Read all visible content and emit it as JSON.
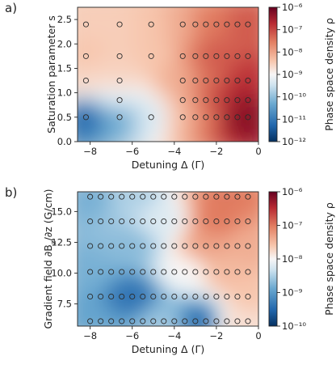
{
  "chart_data": [
    {
      "panel": "a)",
      "type": "heatmap",
      "xlabel": "Detuning Δ (Γ)",
      "ylabel": "Saturation parameter s",
      "xlim": [
        -8.6,
        0
      ],
      "ylim": [
        0,
        2.75
      ],
      "xticks": [
        -8,
        -6,
        -4,
        -2,
        0
      ],
      "yticks": [
        0.0,
        0.5,
        1.0,
        1.5,
        2.0,
        2.5
      ],
      "colorbar": {
        "label": "Phase space density ρ",
        "scale": "log",
        "range": [
          1e-12,
          1e-06
        ],
        "ticks": [
          "10⁻⁶",
          "10⁻⁷",
          "10⁻⁸",
          "10⁻⁹",
          "10⁻¹⁰",
          "10⁻¹¹",
          "10⁻¹²"
        ]
      },
      "colormap": {
        "low": "#2a66ac",
        "mid": "#f7f6f6",
        "high": "#67001f"
      },
      "measurement_points": [
        {
          "detuning": -8.2,
          "s": [
            0.5,
            1.25,
            1.75,
            2.4
          ]
        },
        {
          "detuning": -6.6,
          "s": [
            0.5,
            0.85,
            1.25,
            1.75,
            2.4
          ]
        },
        {
          "detuning": -5.1,
          "s": [
            0.5,
            1.75,
            2.4
          ]
        },
        {
          "detuning": -3.6,
          "s": [
            0.5,
            0.85,
            1.25,
            1.75,
            2.4
          ]
        },
        {
          "detuning": -3.0,
          "s": [
            0.5,
            0.85,
            1.25,
            1.75,
            2.4
          ]
        },
        {
          "detuning": -2.5,
          "s": [
            0.5,
            0.85,
            1.25,
            1.75,
            2.4
          ]
        },
        {
          "detuning": -2.0,
          "s": [
            0.5,
            0.85,
            1.25,
            1.75,
            2.4
          ]
        },
        {
          "detuning": -1.5,
          "s": [
            0.5,
            0.85,
            1.25,
            1.75,
            2.4
          ]
        },
        {
          "detuning": -1.0,
          "s": [
            0.5,
            0.85,
            1.25,
            1.75,
            2.4
          ]
        },
        {
          "detuning": -0.5,
          "s": [
            0.5,
            0.85,
            1.25,
            1.75,
            2.4
          ]
        }
      ],
      "density_field": [
        {
          "detuning": -8.2,
          "s": 0.5,
          "log10_rho": -11.2
        },
        {
          "detuning": -8.2,
          "s": 1.25,
          "log10_rho": -8.6
        },
        {
          "detuning": -8.2,
          "s": 1.75,
          "log10_rho": -8.4
        },
        {
          "detuning": -8.2,
          "s": 2.4,
          "log10_rho": -8.5
        },
        {
          "detuning": -6.6,
          "s": 0.5,
          "log10_rho": -10.3
        },
        {
          "detuning": -6.6,
          "s": 0.85,
          "log10_rho": -9.3
        },
        {
          "detuning": -6.6,
          "s": 1.25,
          "log10_rho": -8.6
        },
        {
          "detuning": -6.6,
          "s": 1.75,
          "log10_rho": -8.5
        },
        {
          "detuning": -6.6,
          "s": 2.4,
          "log10_rho": -8.5
        },
        {
          "detuning": -5.1,
          "s": 0.5,
          "log10_rho": -9.4
        },
        {
          "detuning": -5.1,
          "s": 1.75,
          "log10_rho": -8.4
        },
        {
          "detuning": -5.1,
          "s": 2.4,
          "log10_rho": -8.4
        },
        {
          "detuning": -3.6,
          "s": 0.5,
          "log10_rho": -8.3
        },
        {
          "detuning": -3.6,
          "s": 1.25,
          "log10_rho": -8.1
        },
        {
          "detuning": -3.6,
          "s": 2.4,
          "log10_rho": -8.1
        },
        {
          "detuning": -2.5,
          "s": 0.5,
          "log10_rho": -7.5
        },
        {
          "detuning": -2.5,
          "s": 1.25,
          "log10_rho": -7.4
        },
        {
          "detuning": -2.5,
          "s": 2.4,
          "log10_rho": -7.5
        },
        {
          "detuning": -2.0,
          "s": 1.75,
          "log10_rho": -7.2
        },
        {
          "detuning": -1.5,
          "s": 0.85,
          "log10_rho": -6.9
        },
        {
          "detuning": -1.0,
          "s": 0.5,
          "log10_rho": -6.3
        },
        {
          "detuning": -1.0,
          "s": 0.85,
          "log10_rho": -6.4
        },
        {
          "detuning": -0.5,
          "s": 0.5,
          "log10_rho": -6.3
        },
        {
          "detuning": -0.5,
          "s": 1.25,
          "log10_rho": -6.8
        },
        {
          "detuning": -0.5,
          "s": 2.4,
          "log10_rho": -7.2
        }
      ]
    },
    {
      "panel": "b)",
      "type": "heatmap",
      "xlabel": "Detuning Δ (Γ)",
      "ylabel": "Gradient field ∂B_z/∂z (G/cm)",
      "xlim": [
        -8.6,
        0
      ],
      "ylim": [
        5.7,
        16.6
      ],
      "xticks": [
        -8,
        -6,
        -4,
        -2,
        0
      ],
      "yticks": [
        7.5,
        10.0,
        12.5,
        15.0
      ],
      "colorbar": {
        "label": "Phase space density ρ",
        "scale": "log",
        "range": [
          1e-10,
          1e-06
        ],
        "ticks": [
          "10⁻⁶",
          "10⁻⁷",
          "10⁻⁸",
          "10⁻⁹",
          "10⁻¹⁰"
        ]
      },
      "colormap": {
        "low": "#2a66ac",
        "mid": "#f7f6f6",
        "high": "#67001f"
      },
      "measurement_points": {
        "gradients": [
          6.1,
          8.1,
          10.1,
          12.2,
          14.2,
          16.2
        ],
        "detuning_from": -8.0,
        "detuning_to": -0.5,
        "detuning_step": 0.5
      },
      "density_field": [
        {
          "detuning": -8.0,
          "gradient": 6.1,
          "log10_rho": -8.9
        },
        {
          "detuning": -8.0,
          "gradient": 10.1,
          "log10_rho": -8.8
        },
        {
          "detuning": -8.0,
          "gradient": 16.2,
          "log10_rho": -8.8
        },
        {
          "detuning": -6.0,
          "gradient": 8.1,
          "log10_rho": -9.4
        },
        {
          "detuning": -6.0,
          "gradient": 12.2,
          "log10_rho": -8.7
        },
        {
          "detuning": -6.0,
          "gradient": 16.2,
          "log10_rho": -8.5
        },
        {
          "detuning": -4.5,
          "gradient": 6.1,
          "log10_rho": -8.6
        },
        {
          "detuning": -4.5,
          "gradient": 14.2,
          "log10_rho": -8.2
        },
        {
          "detuning": -3.5,
          "gradient": 10.1,
          "log10_rho": -8.0
        },
        {
          "detuning": -2.8,
          "gradient": 6.1,
          "log10_rho": -9.4
        },
        {
          "detuning": -2.5,
          "gradient": 12.2,
          "log10_rho": -7.3
        },
        {
          "detuning": -2.0,
          "gradient": 14.2,
          "log10_rho": -7.0
        },
        {
          "detuning": -1.5,
          "gradient": 16.2,
          "log10_rho": -7.0
        },
        {
          "detuning": -1.5,
          "gradient": 10.1,
          "log10_rho": -7.5
        },
        {
          "detuning": -1.0,
          "gradient": 6.1,
          "log10_rho": -7.8
        },
        {
          "detuning": -0.5,
          "gradient": 12.2,
          "log10_rho": -7.4
        },
        {
          "detuning": -0.5,
          "gradient": 8.1,
          "log10_rho": -7.6
        }
      ]
    }
  ]
}
